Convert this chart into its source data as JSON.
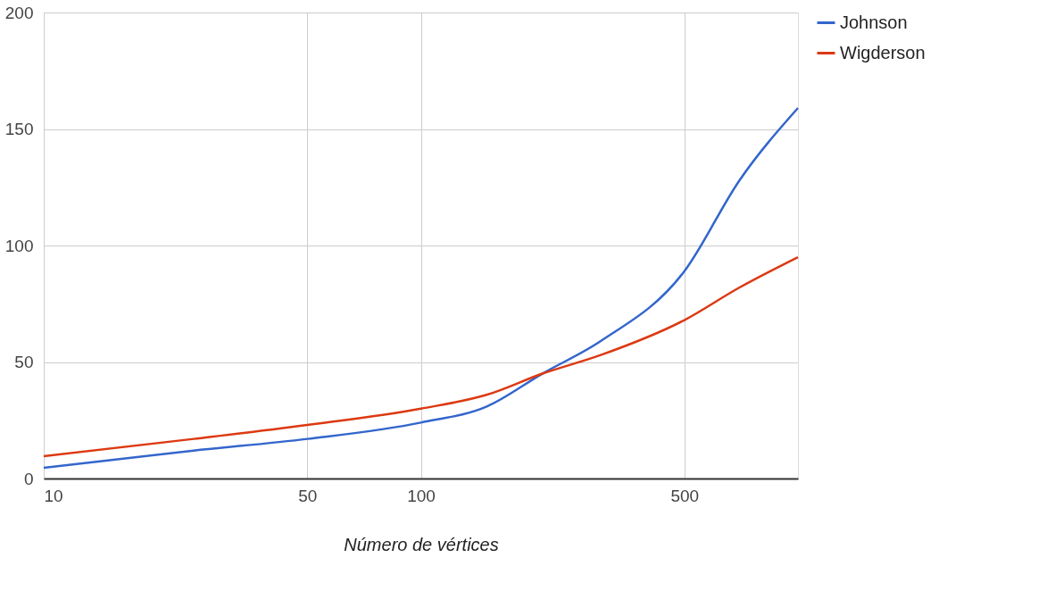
{
  "chart_data": {
    "type": "line",
    "xlabel": "Número de vértices",
    "log": "x",
    "xlim": [
      10,
      1000
    ],
    "xticks": [
      10,
      50,
      100,
      500
    ],
    "ylim": [
      0,
      200
    ],
    "yticks": [
      0,
      50,
      100,
      150,
      200
    ],
    "grid": true,
    "legend": "top right",
    "line_style": "solid",
    "marker": "none",
    "x": [
      10,
      25,
      50,
      100,
      150,
      210,
      300,
      500,
      700,
      1000
    ],
    "series": [
      {
        "name": "Johnson",
        "color": "#3366cc",
        "values": [
          4.6,
          12,
          17,
          24,
          31,
          45,
          59,
          89,
          128,
          159
        ]
      },
      {
        "name": "Wigderson",
        "color": "#dc3912",
        "values": [
          9.6,
          17,
          23,
          30,
          36,
          45,
          53,
          68,
          82,
          95
        ]
      }
    ]
  }
}
